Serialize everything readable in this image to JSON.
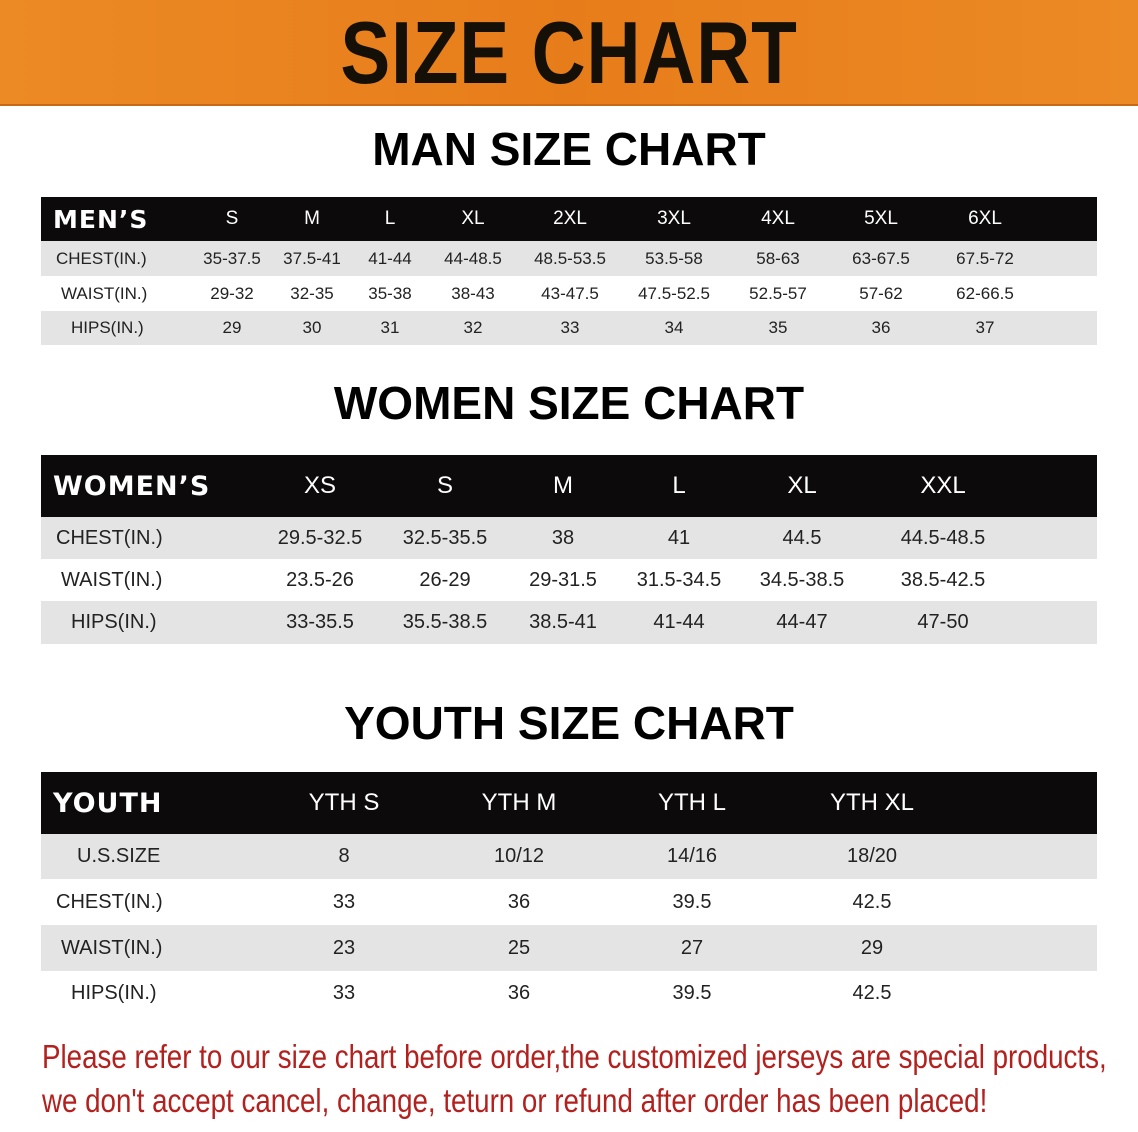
{
  "banner": {
    "title": "SIZE CHART",
    "color": "#e87e1e"
  },
  "men": {
    "title": "MAN SIZE CHART",
    "header": "MEN’S",
    "sizes": [
      "S",
      "M",
      "L",
      "XL",
      "2XL",
      "3XL",
      "4XL",
      "5XL",
      "6XL"
    ],
    "rows": [
      {
        "label": "CHEST(IN.)",
        "values": [
          "35-37.5",
          "37.5-41",
          "41-44",
          "44-48.5",
          "48.5-53.5",
          "53.5-58",
          "58-63",
          "63-67.5",
          "67.5-72"
        ]
      },
      {
        "label": "WAIST(IN.)",
        "values": [
          "29-32",
          "32-35",
          "35-38",
          "38-43",
          "43-47.5",
          "47.5-52.5",
          "52.5-57",
          "57-62",
          "62-66.5"
        ]
      },
      {
        "label": "HIPS(IN.)",
        "values": [
          "29",
          "30",
          "31",
          "32",
          "33",
          "34",
          "35",
          "36",
          "37"
        ]
      }
    ]
  },
  "women": {
    "title": "WOMEN SIZE CHART",
    "header": "WOMEN’S",
    "sizes": [
      "XS",
      "S",
      "M",
      "L",
      "XL",
      "XXL"
    ],
    "rows": [
      {
        "label": "CHEST(IN.)",
        "values": [
          "29.5-32.5",
          "32.5-35.5",
          "38",
          "41",
          "44.5",
          "44.5-48.5"
        ]
      },
      {
        "label": "WAIST(IN.)",
        "values": [
          "23.5-26",
          "26-29",
          "29-31.5",
          "31.5-34.5",
          "34.5-38.5",
          "38.5-42.5"
        ]
      },
      {
        "label": "HIPS(IN.)",
        "values": [
          "33-35.5",
          "35.5-38.5",
          "38.5-41",
          "41-44",
          "44-47",
          "47-50"
        ]
      }
    ]
  },
  "youth": {
    "title": "YOUTH SIZE CHART",
    "header": "YOUTH",
    "sizes": [
      "YTH S",
      "YTH M",
      "YTH L",
      "YTH XL"
    ],
    "rows": [
      {
        "label": "U.S.SIZE",
        "values": [
          "8",
          "10/12",
          "14/16",
          "18/20"
        ]
      },
      {
        "label": "CHEST(IN.)",
        "values": [
          "33",
          "36",
          "39.5",
          "42.5"
        ]
      },
      {
        "label": "WAIST(IN.)",
        "values": [
          "23",
          "25",
          "27",
          "29"
        ]
      },
      {
        "label": "HIPS(IN.)",
        "values": [
          "33",
          "36",
          "39.5",
          "42.5"
        ]
      }
    ]
  },
  "notice": {
    "line1": "Please refer to our size chart before order,the customized jerseys are special products,",
    "line2": "we don't accept cancel, change, teturn or refund after order has been placed!",
    "color": "#b3211f"
  }
}
